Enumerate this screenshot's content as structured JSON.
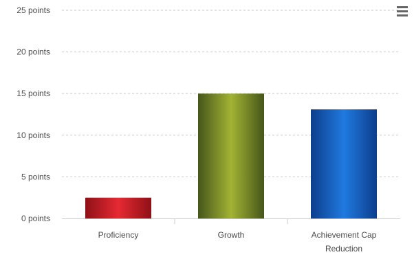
{
  "colors": {
    "grid": "#c9c9c9",
    "axis_line": "#c9c9c9",
    "tick_text": "#4a4a4a",
    "menu_icon": "#666666"
  },
  "toolbar": {
    "menu_icon": "hamburger-menu-icon"
  },
  "chart_data": {
    "type": "bar",
    "title": "",
    "xlabel": "",
    "ylabel": "",
    "categories": [
      [
        "Proficiency"
      ],
      [
        "Growth"
      ],
      [
        "Achievement Cap",
        "Reduction"
      ]
    ],
    "values": [
      2.5,
      15,
      13.1
    ],
    "bar_colors": [
      [
        "#8f1016",
        "#e62a33",
        "#8f1016"
      ],
      [
        "#45561a",
        "#a3b334",
        "#45561a"
      ],
      [
        "#0d3e8c",
        "#1f7ae0",
        "#0d3e8c"
      ]
    ],
    "ylim": [
      0,
      25
    ],
    "y_ticks": [
      {
        "value": 0,
        "label": "0 points"
      },
      {
        "value": 5,
        "label": "5 points"
      },
      {
        "value": 10,
        "label": "10 points"
      },
      {
        "value": 15,
        "label": "15 points"
      },
      {
        "value": 20,
        "label": "20 points"
      },
      {
        "value": 25,
        "label": "25 points"
      }
    ],
    "grid": true,
    "legend": "none"
  }
}
